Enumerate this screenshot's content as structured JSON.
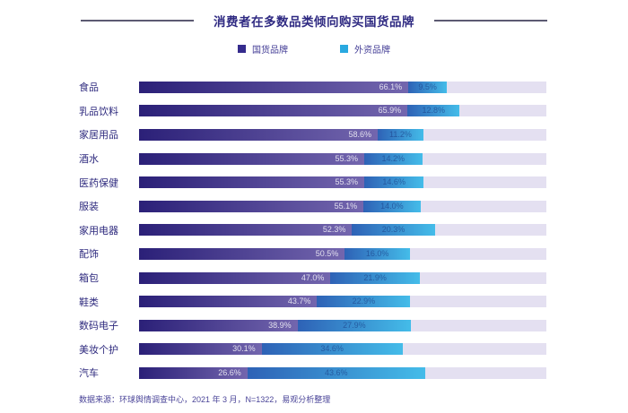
{
  "page": {
    "title": "消费者在多数品类倾向购买国货品牌",
    "footer": "数据来源：环球舆情调查中心，2021 年 3 月，N=1322，易观分析整理"
  },
  "legend": [
    {
      "label": "国货品牌",
      "color": "#352b8d"
    },
    {
      "label": "外资品牌",
      "color": "#29a9e0"
    }
  ],
  "colors": {
    "title": "#2f2a82",
    "legend_domestic": "#352b8d",
    "legend_foreign": "#29a9e0",
    "domestic_start": "#2b2078",
    "domestic_end": "#7366ae",
    "foreign_start": "#2e62b6",
    "foreign_end": "#44bce9",
    "track": "#e4e0f1"
  },
  "chart_data": {
    "type": "bar",
    "orientation": "horizontal",
    "stacked": true,
    "title": "消费者在多数品类倾向购买国货品牌",
    "categories": [
      "食品",
      "乳品饮料",
      "家居用品",
      "酒水",
      "医药保健",
      "服装",
      "家用电器",
      "配饰",
      "箱包",
      "鞋类",
      "数码电子",
      "美妆个护",
      "汽车"
    ],
    "series": [
      {
        "name": "国货品牌",
        "values": [
          66.1,
          65.9,
          58.6,
          55.3,
          55.3,
          55.1,
          52.3,
          50.5,
          47.0,
          43.7,
          38.9,
          30.1,
          26.6
        ]
      },
      {
        "name": "外资品牌",
        "values": [
          9.5,
          12.8,
          11.2,
          14.2,
          14.6,
          14.0,
          20.3,
          16.0,
          21.9,
          22.9,
          27.9,
          34.6,
          43.6
        ]
      }
    ],
    "value_suffix": "%",
    "xlim": [
      0,
      100
    ],
    "grid": false,
    "legend_position": "top",
    "note": "数据来源：环球舆情调查中心，2021 年 3 月，N=1322，易观分析整理"
  }
}
